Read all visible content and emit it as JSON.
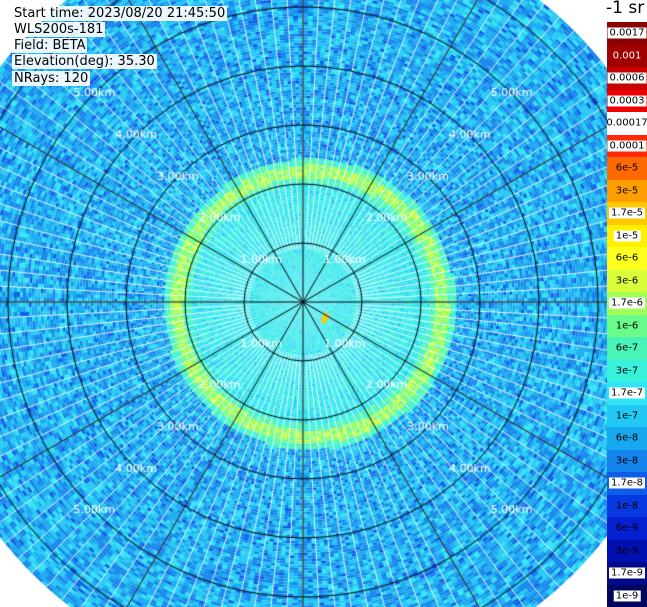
{
  "info": {
    "start_time": "Start time: 2023/08/20 21:45:50",
    "device": "WLS200s-181",
    "field": "Field: BETA",
    "elevation": "Elevation(deg): 35.30",
    "nrays": "NRays: 120"
  },
  "legend": {
    "units": "-1 sr",
    "bins": [
      {
        "label": "0.0017",
        "color": "#8b0000",
        "style": "white"
      },
      {
        "label": "0.001",
        "color": "#a00000",
        "style": "dark"
      },
      {
        "label": "0.0006",
        "color": "#c80000",
        "style": "white"
      },
      {
        "label": "0.0003",
        "color": "#ee0000",
        "style": "white"
      },
      {
        "label": "0.00017",
        "color": "#ffffff",
        "style": "bare"
      },
      {
        "label": "0.0001",
        "color": "#ff2a00",
        "style": "white"
      },
      {
        "label": "6e-5",
        "color": "#ff6a00",
        "style": "bare"
      },
      {
        "label": "3e-5",
        "color": "#ff9e00",
        "style": "bare"
      },
      {
        "label": "1.7e-5",
        "color": "#ffc800",
        "style": "white"
      },
      {
        "label": "1e-5",
        "color": "#fff000",
        "style": "white"
      },
      {
        "label": "6e-6",
        "color": "#ffff1e",
        "style": "bare"
      },
      {
        "label": "3e-6",
        "color": "#d8ff3a",
        "style": "bare"
      },
      {
        "label": "1.7e-6",
        "color": "#a2ff5a",
        "style": "white"
      },
      {
        "label": "1e-6",
        "color": "#6afc8a",
        "style": "bare"
      },
      {
        "label": "6e-7",
        "color": "#4af4b8",
        "style": "bare"
      },
      {
        "label": "3e-7",
        "color": "#38f2dc",
        "style": "bare"
      },
      {
        "label": "1.7e-7",
        "color": "#30e4f6",
        "style": "white"
      },
      {
        "label": "1e-7",
        "color": "#22c8f4",
        "style": "bare"
      },
      {
        "label": "6e-8",
        "color": "#18a8f0",
        "style": "bare"
      },
      {
        "label": "3e-8",
        "color": "#1484ec",
        "style": "bare"
      },
      {
        "label": "1.7e-8",
        "color": "#0e5ce8",
        "style": "white"
      },
      {
        "label": "1e-8",
        "color": "#0838e0",
        "style": "bare"
      },
      {
        "label": "6e-9",
        "color": "#0420d0",
        "style": "bare"
      },
      {
        "label": "3e-9",
        "color": "#0010b0",
        "style": "bare"
      },
      {
        "label": "1.7e-9",
        "color": "#000a88",
        "style": "white"
      },
      {
        "label": "1e-9",
        "color": "#000560",
        "style": "white"
      }
    ]
  },
  "chart_data": {
    "type": "heatmap",
    "title": "",
    "projection": "polar (PPI)",
    "field": "BETA",
    "units": "-1 sr",
    "elevation_deg": 35.3,
    "nrays": 120,
    "range_rings_km": [
      1,
      2,
      3,
      4,
      5,
      6
    ],
    "range_labels": [
      "1.00km",
      "2.00km",
      "3.00km",
      "4.00km",
      "5.00km"
    ],
    "azimuth_spokes": 12,
    "max_range_km": 6.5,
    "color_scale": "log",
    "color_range": [
      1e-09,
      0.0017
    ],
    "features": [
      {
        "type": "ring",
        "range_km": [
          2.15,
          2.35
        ],
        "value": 2e-06
      },
      {
        "type": "disk",
        "range_km": [
          0,
          2.1
        ],
        "value": 3e-07
      },
      {
        "type": "background",
        "range_km": [
          2.35,
          6.5
        ],
        "value": 8e-08
      }
    ]
  }
}
